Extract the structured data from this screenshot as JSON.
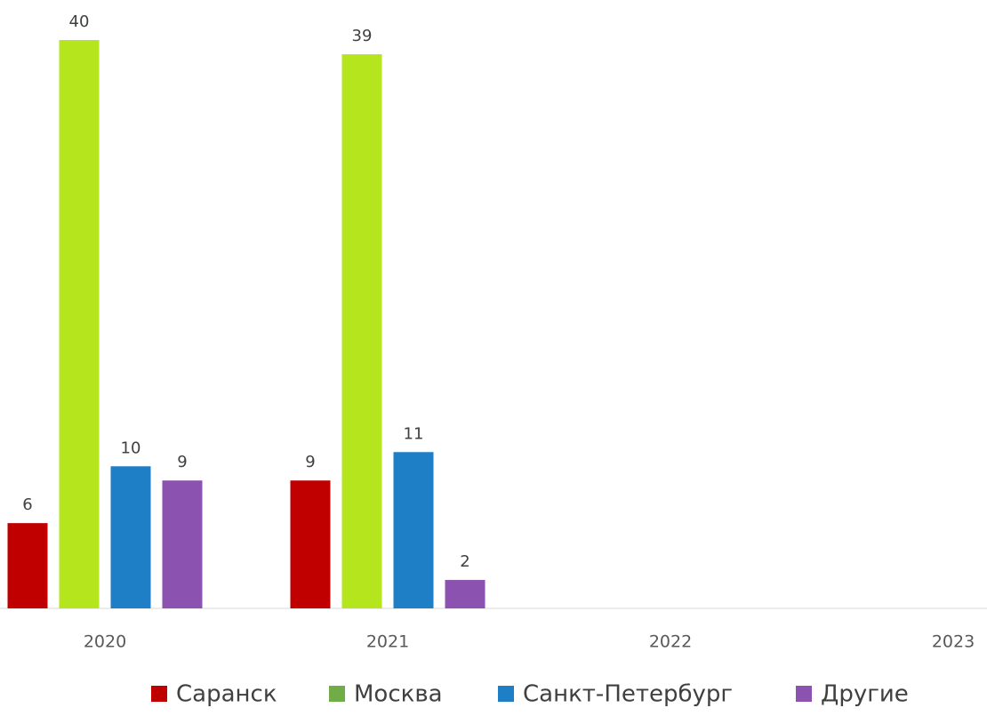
{
  "chart_data": {
    "type": "bar",
    "categories": [
      "2020",
      "2021",
      "2022",
      "2023"
    ],
    "series": [
      {
        "name": "Саранск",
        "color": "#c00000",
        "values": [
          6,
          9,
          null,
          null
        ]
      },
      {
        "name": "Москва",
        "color": "#b5e61d",
        "legend_color": "#70ad47",
        "values": [
          40,
          39,
          null,
          null
        ]
      },
      {
        "name": "Санкт-Петербург",
        "color": "#1e7fc6",
        "values": [
          10,
          11,
          null,
          null
        ]
      },
      {
        "name": "Другие",
        "color": "#8c52b0",
        "values": [
          9,
          2,
          null,
          null
        ]
      }
    ],
    "legend": "bottom",
    "grid": false
  }
}
